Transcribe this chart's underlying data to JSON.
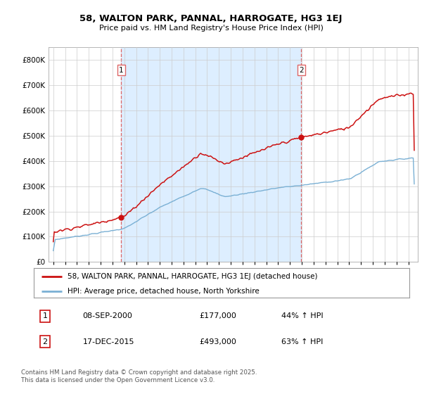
{
  "title": "58, WALTON PARK, PANNAL, HARROGATE, HG3 1EJ",
  "subtitle": "Price paid vs. HM Land Registry's House Price Index (HPI)",
  "background_color": "#ffffff",
  "plot_bg_color": "#ffffff",
  "shade_color": "#ddeeff",
  "grid_color": "#cccccc",
  "hpi_color": "#7ab0d4",
  "price_color": "#cc1111",
  "marker_color": "#cc1111",
  "vline_color": "#dd6666",
  "sale1_date_num": 2000.75,
  "sale1_price": 177000,
  "sale2_date_num": 2015.96,
  "sale2_price": 493000,
  "ylim_max": 850000,
  "xlim_min": 1994.6,
  "xlim_max": 2025.8,
  "footnote": "Contains HM Land Registry data © Crown copyright and database right 2025.\nThis data is licensed under the Open Government Licence v3.0.",
  "legend1_text": "58, WALTON PARK, PANNAL, HARROGATE, HG3 1EJ (detached house)",
  "legend2_text": "HPI: Average price, detached house, North Yorkshire",
  "table_row1": [
    "1",
    "08-SEP-2000",
    "£177,000",
    "44% ↑ HPI"
  ],
  "table_row2": [
    "2",
    "17-DEC-2015",
    "£493,000",
    "63% ↑ HPI"
  ]
}
